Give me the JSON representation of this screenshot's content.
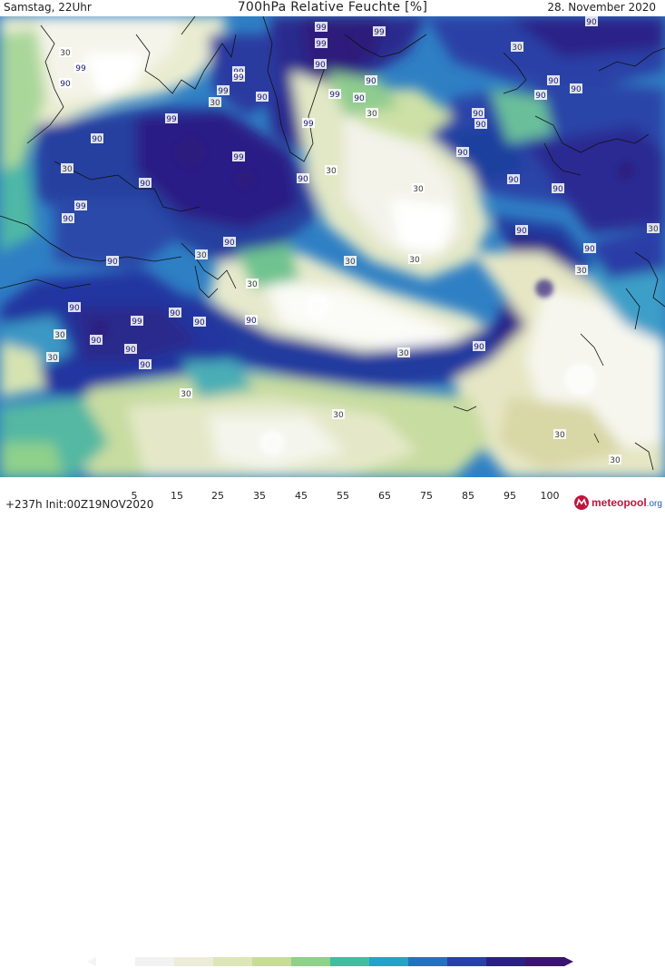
{
  "header": {
    "left": "Samstag, 22Uhr",
    "title": "700hPa Relative Feuchte [%]",
    "right": "28. November 2020"
  },
  "legend": {
    "labels": [
      "5",
      "15",
      "25",
      "35",
      "45",
      "55",
      "65",
      "75",
      "85",
      "95",
      "100"
    ],
    "colors": [
      "#ffffff",
      "#f2f2f2",
      "#ecedd8",
      "#dde6b9",
      "#c8dc9a",
      "#8fd08a",
      "#3fbfa0",
      "#22a4c6",
      "#1f73c4",
      "#2a3fae",
      "#2a1f8a",
      "#3a1470"
    ]
  },
  "run": {
    "info": "+237h  Init:00Z19NOV2020"
  },
  "logo": {
    "name": "meteopool",
    "tld": ".org"
  },
  "map": {
    "labels": [
      {
        "text": "30"
      },
      {
        "text": "99"
      },
      {
        "text": "90"
      },
      {
        "text": "99"
      },
      {
        "text": "99"
      },
      {
        "text": "99"
      },
      {
        "text": "90"
      },
      {
        "text": "99"
      },
      {
        "text": "99"
      },
      {
        "text": "90"
      },
      {
        "text": "30"
      },
      {
        "text": "99"
      },
      {
        "text": "90"
      },
      {
        "text": "90"
      },
      {
        "text": "99"
      },
      {
        "text": "30"
      },
      {
        "text": "99"
      },
      {
        "text": "90"
      },
      {
        "text": "90"
      },
      {
        "text": "30"
      },
      {
        "text": "90"
      },
      {
        "text": "99"
      },
      {
        "text": "30"
      },
      {
        "text": "99"
      },
      {
        "text": "90"
      },
      {
        "text": "90"
      },
      {
        "text": "30"
      },
      {
        "text": "90"
      },
      {
        "text": "90"
      },
      {
        "text": "90"
      },
      {
        "text": "90"
      },
      {
        "text": "90"
      },
      {
        "text": "30"
      },
      {
        "text": "30"
      },
      {
        "text": "90"
      },
      {
        "text": "30"
      },
      {
        "text": "90"
      },
      {
        "text": "90"
      },
      {
        "text": "99"
      },
      {
        "text": "90"
      },
      {
        "text": "90"
      },
      {
        "text": "90"
      },
      {
        "text": "99"
      },
      {
        "text": "90"
      },
      {
        "text": "90"
      },
      {
        "text": "90"
      },
      {
        "text": "90"
      },
      {
        "text": "30"
      },
      {
        "text": "30"
      },
      {
        "text": "30"
      },
      {
        "text": "90"
      },
      {
        "text": "30"
      },
      {
        "text": "30"
      },
      {
        "text": "30"
      },
      {
        "text": "30"
      },
      {
        "text": "90"
      },
      {
        "text": "30"
      },
      {
        "text": "30"
      },
      {
        "text": "30"
      },
      {
        "text": "90"
      },
      {
        "text": "90"
      },
      {
        "text": "90"
      },
      {
        "text": "30"
      }
    ]
  }
}
